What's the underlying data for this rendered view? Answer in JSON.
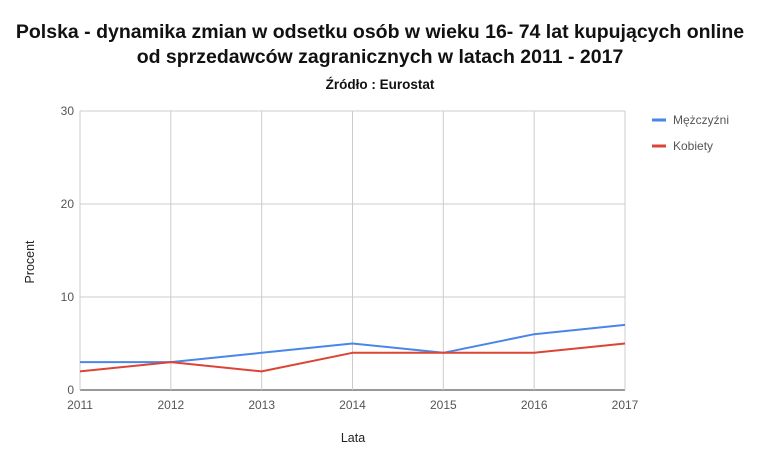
{
  "chart_data": {
    "type": "line",
    "title_line1": "Polska - dynamika zmian w odsetku osób w wieku 16- 74 lat kupujących online",
    "title_line2": "od sprzedawców zagranicznych w latach 2011 - 2017",
    "subtitle": "Źródło : Eurostat",
    "xlabel": "Lata",
    "ylabel": "Procent",
    "x": [
      "2011",
      "2012",
      "2013",
      "2014",
      "2015",
      "2016",
      "2017"
    ],
    "ylim": [
      0,
      30
    ],
    "yticks": [
      0,
      10,
      20,
      30
    ],
    "grid": true,
    "legend_position": "right",
    "series": [
      {
        "name": "Mężczyźni",
        "color": "#4a86e8",
        "values": [
          3,
          3,
          4,
          5,
          4,
          6,
          7
        ]
      },
      {
        "name": "Kobiety",
        "color": "#db4437",
        "values": [
          2,
          3,
          2,
          4,
          4,
          4,
          5
        ]
      }
    ]
  }
}
